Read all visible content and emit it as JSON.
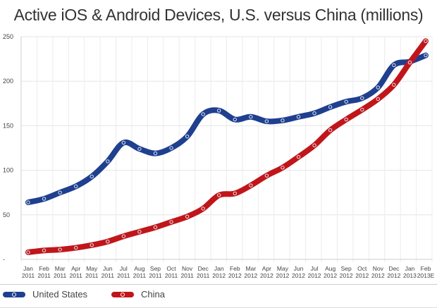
{
  "chart_data": {
    "type": "line",
    "title": "Active iOS & Android Devices, U.S. versus China (millions)",
    "xlabel": "",
    "ylabel": "",
    "ylim": [
      0,
      250
    ],
    "yticks": [
      "-",
      "50",
      "100",
      "150",
      "200",
      "250"
    ],
    "grid": true,
    "legend_placement": "bottom",
    "categories": [
      [
        "Jan",
        "2011"
      ],
      [
        "Feb",
        "2011"
      ],
      [
        "Mar",
        "2011"
      ],
      [
        "Apr",
        "2011"
      ],
      [
        "May",
        "2011"
      ],
      [
        "Jun",
        "2011"
      ],
      [
        "Jul",
        "2011"
      ],
      [
        "Aug",
        "2011"
      ],
      [
        "Sep",
        "2011"
      ],
      [
        "Oct",
        "2011"
      ],
      [
        "Nov",
        "2011"
      ],
      [
        "Dec",
        "2011"
      ],
      [
        "Jan",
        "2012"
      ],
      [
        "Feb",
        "2012"
      ],
      [
        "Mar",
        "2012"
      ],
      [
        "Apr",
        "2012"
      ],
      [
        "May",
        "2012"
      ],
      [
        "Jun",
        "2012"
      ],
      [
        "Jul",
        "2012"
      ],
      [
        "Aug",
        "2012"
      ],
      [
        "Sep",
        "2012"
      ],
      [
        "Oct",
        "2012"
      ],
      [
        "Nov",
        "2012"
      ],
      [
        "Dec",
        "2012"
      ],
      [
        "Jan",
        "2013"
      ],
      [
        "Feb",
        "2013E"
      ]
    ],
    "series": [
      {
        "name": "United States",
        "color": "#1f3f8f",
        "values": [
          64,
          68,
          75,
          82,
          93,
          110,
          131,
          124,
          119,
          125,
          138,
          163,
          167,
          157,
          160,
          155,
          156,
          160,
          164,
          171,
          177,
          181,
          193,
          218,
          222,
          229
        ]
      },
      {
        "name": "China",
        "color": "#c0161a",
        "values": [
          8,
          10,
          11,
          13,
          16,
          20,
          26,
          31,
          36,
          42,
          48,
          57,
          72,
          74,
          83,
          94,
          103,
          115,
          128,
          145,
          157,
          168,
          180,
          196,
          221,
          245
        ]
      }
    ]
  }
}
